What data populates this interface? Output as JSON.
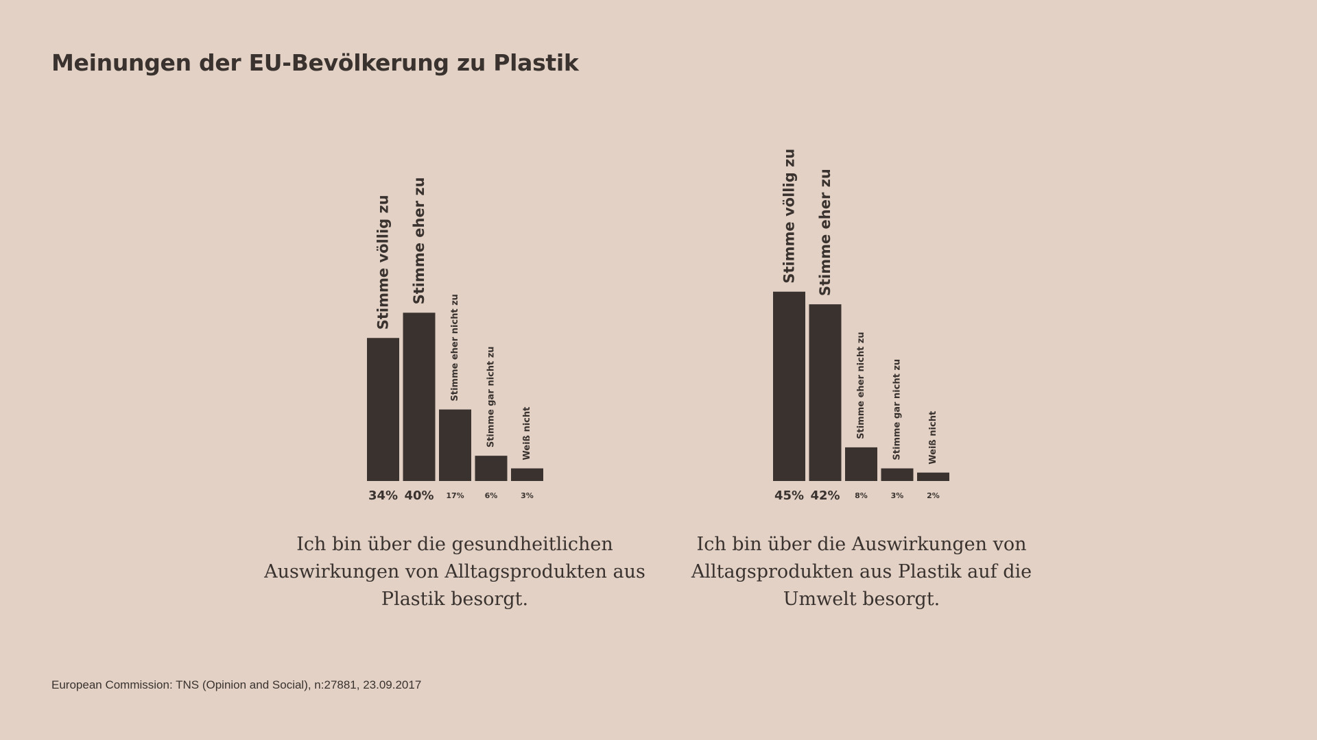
{
  "title": "Meinungen der EU-Bevölkerung zu Plastik",
  "source": "European Commission: TNS (Opinion and Social), n:27881, 23.09.2017",
  "colors": {
    "background": "#e2d1c4",
    "bar": "#39322f",
    "text": "#39322f"
  },
  "chart_data": [
    {
      "type": "bar",
      "title": "Ich bin über die gesundheitlichen Auswirkungen von Alltagsprodukten aus Plastik besorgt.",
      "categories": [
        "Stimme völlig zu",
        "Stimme eher zu",
        "Stimme eher nicht zu",
        "Stimme gar nicht zu",
        "Weiß nicht"
      ],
      "values": [
        34,
        40,
        17,
        6,
        3
      ],
      "value_labels": [
        "34%",
        "40%",
        "17%",
        "6%",
        "3%"
      ],
      "unit": "%"
    },
    {
      "type": "bar",
      "title": "Ich bin über die Auswirkungen von Alltagsprodukten aus Plastik auf die Umwelt besorgt.",
      "categories": [
        "Stimme völlig zu",
        "Stimme eher zu",
        "Stimme eher nicht zu",
        "Stimme gar nicht zu",
        "Weiß nicht"
      ],
      "values": [
        45,
        42,
        8,
        3,
        2
      ],
      "value_labels": [
        "45%",
        "42%",
        "8%",
        "3%",
        "2%"
      ],
      "unit": "%"
    }
  ]
}
